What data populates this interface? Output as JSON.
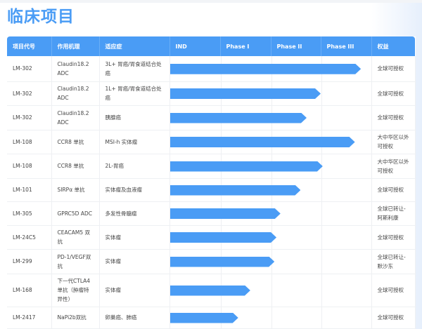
{
  "title": "临床项目",
  "headers": [
    "项目代号",
    "作用机理",
    "适应症",
    "IND",
    "Phase I",
    "Phase II",
    "Phase III",
    "权益"
  ],
  "accent_color": "#4a9cf5",
  "rows": [
    {
      "code": "LM-302",
      "mechanism": "Claudin18.2 ADC",
      "indication": "3L+ 胃癌/胃食道结合处癌",
      "progress": 0.95,
      "rights": "全球可授权"
    },
    {
      "code": "LM-302",
      "mechanism": "Claudin18.2 ADC",
      "indication": "1L+ 胃癌/胃食道结合处癌",
      "progress": 0.75,
      "rights": "全球可授权"
    },
    {
      "code": "LM-302",
      "mechanism": "Claudin18.2 ADC",
      "indication": "胰腺癌",
      "progress": 0.68,
      "rights": "全球可授权"
    },
    {
      "code": "LM-108",
      "mechanism": "CCR8 单抗",
      "indication": "MSI-h 实体瘤",
      "progress": 0.92,
      "rights": "大中华区以外可授权"
    },
    {
      "code": "LM-108",
      "mechanism": "CCR8 单抗",
      "indication": "2L-胃癌",
      "progress": 0.76,
      "rights": "大中华区以外可授权"
    },
    {
      "code": "LM-101",
      "mechanism": "SIRPα 单抗",
      "indication": "实体瘤及血液瘤",
      "progress": 0.65,
      "rights": "全球可授权"
    },
    {
      "code": "LM-305",
      "mechanism": "GPRC5D ADC",
      "indication": "多发性骨髓瘤",
      "progress": 0.55,
      "rights": "全球已转让-阿斯利康"
    },
    {
      "code": "LM-24C5",
      "mechanism": "CEACAM5 双抗",
      "indication": "实体瘤",
      "progress": 0.53,
      "rights": "全球可授权"
    },
    {
      "code": "LM-299",
      "mechanism": "PD-1/VEGF双抗",
      "indication": "实体瘤",
      "progress": 0.52,
      "rights": "全球已转让-默沙东"
    },
    {
      "code": "LM-168",
      "mechanism": "下一代CTLA4单抗（肿瘤特异性）",
      "indication": "实体瘤",
      "progress": 0.4,
      "rights": "全球可授权"
    },
    {
      "code": "LM-2417",
      "mechanism": "NaPi2b双抗",
      "indication": "卵巢癌、肺癌",
      "progress": 0.34,
      "rights": "全球可授权"
    }
  ]
}
